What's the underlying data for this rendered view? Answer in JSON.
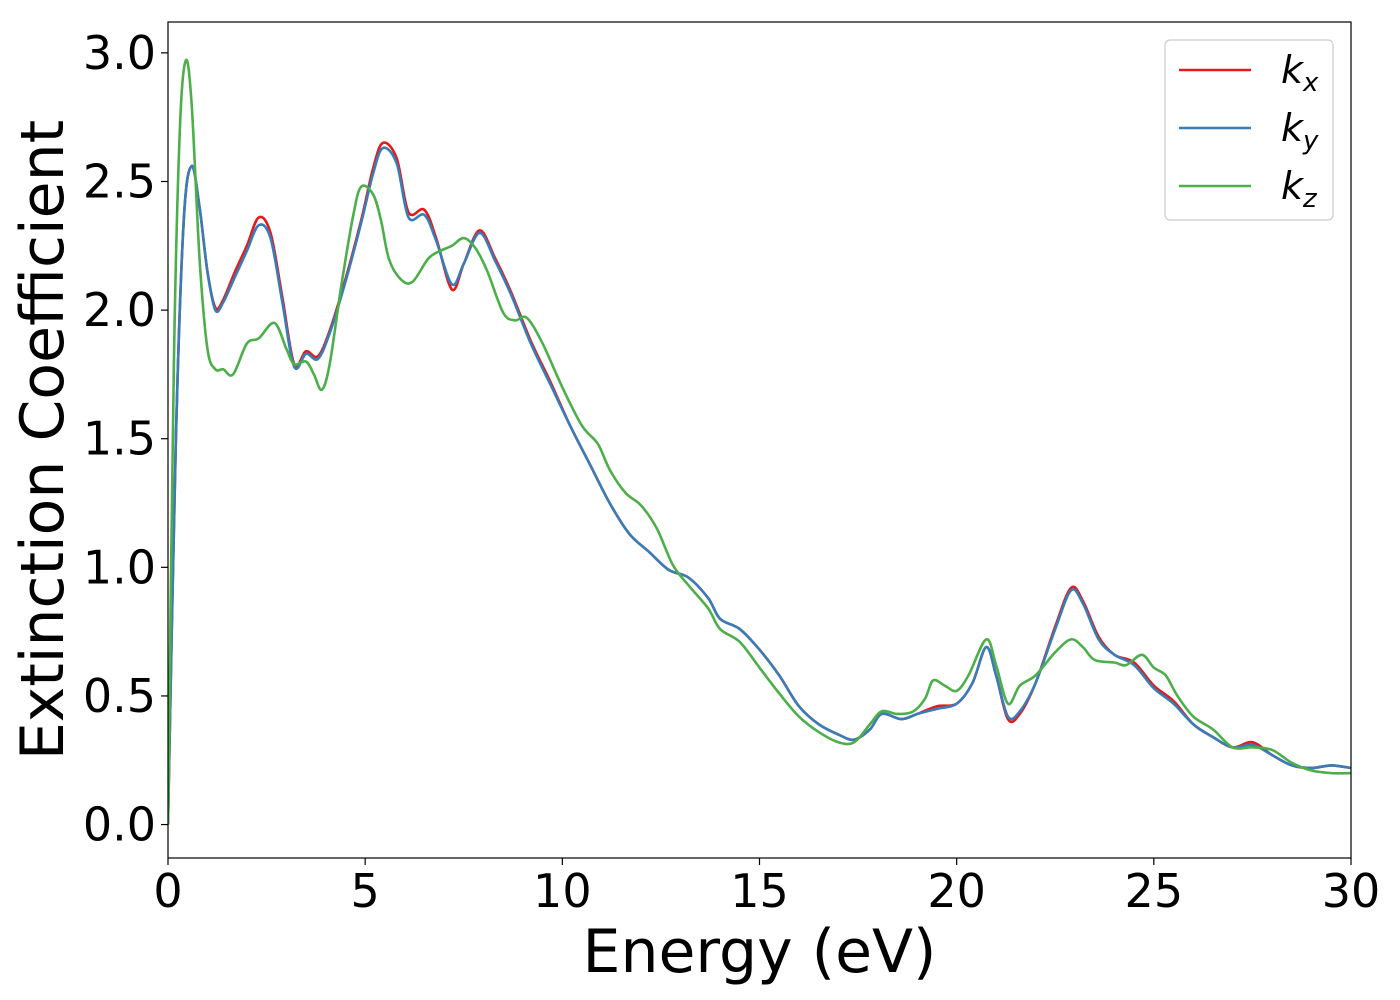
{
  "chart_data": {
    "type": "line",
    "xlabel": "Energy (eV)",
    "ylabel": "Extinction Coefficient",
    "xlim": [
      0,
      30
    ],
    "ylim": [
      -0.13,
      3.12
    ],
    "xticks": [
      0,
      5,
      10,
      15,
      20,
      25,
      30
    ],
    "xtick_labels": [
      "0",
      "5",
      "10",
      "15",
      "20",
      "25",
      "30"
    ],
    "yticks": [
      0.0,
      0.5,
      1.0,
      1.5,
      2.0,
      2.5,
      3.0
    ],
    "ytick_labels": [
      "0.0",
      "0.5",
      "1.0",
      "1.5",
      "2.0",
      "2.5",
      "3.0"
    ],
    "grid": false,
    "legend_position": "top-right",
    "series": [
      {
        "name_main": "k",
        "name_sub": "x",
        "color": "#e41a1c",
        "points": [
          [
            0,
            0
          ],
          [
            0.2,
            1.5
          ],
          [
            0.4,
            2.35
          ],
          [
            0.6,
            2.56
          ],
          [
            0.8,
            2.4
          ],
          [
            1.0,
            2.15
          ],
          [
            1.2,
            2.01
          ],
          [
            1.4,
            2.04
          ],
          [
            1.7,
            2.15
          ],
          [
            2.0,
            2.25
          ],
          [
            2.3,
            2.36
          ],
          [
            2.6,
            2.3
          ],
          [
            2.9,
            2.05
          ],
          [
            3.2,
            1.79
          ],
          [
            3.5,
            1.84
          ],
          [
            3.8,
            1.82
          ],
          [
            4.1,
            1.92
          ],
          [
            4.5,
            2.12
          ],
          [
            4.9,
            2.35
          ],
          [
            5.2,
            2.55
          ],
          [
            5.45,
            2.65
          ],
          [
            5.8,
            2.59
          ],
          [
            6.1,
            2.38
          ],
          [
            6.5,
            2.39
          ],
          [
            6.8,
            2.28
          ],
          [
            7.2,
            2.08
          ],
          [
            7.5,
            2.18
          ],
          [
            7.9,
            2.31
          ],
          [
            8.3,
            2.2
          ],
          [
            8.7,
            2.07
          ],
          [
            9.2,
            1.88
          ],
          [
            9.7,
            1.72
          ],
          [
            10.2,
            1.55
          ],
          [
            10.7,
            1.4
          ],
          [
            11.2,
            1.25
          ],
          [
            11.7,
            1.13
          ],
          [
            12.2,
            1.06
          ],
          [
            12.7,
            0.99
          ],
          [
            13.2,
            0.96
          ],
          [
            13.7,
            0.88
          ],
          [
            14.0,
            0.8
          ],
          [
            14.5,
            0.76
          ],
          [
            15.0,
            0.68
          ],
          [
            15.5,
            0.58
          ],
          [
            16.0,
            0.46
          ],
          [
            16.5,
            0.39
          ],
          [
            17.0,
            0.35
          ],
          [
            17.4,
            0.33
          ],
          [
            17.8,
            0.37
          ],
          [
            18.1,
            0.43
          ],
          [
            18.6,
            0.41
          ],
          [
            19.0,
            0.43
          ],
          [
            19.5,
            0.46
          ],
          [
            20.0,
            0.47
          ],
          [
            20.4,
            0.55
          ],
          [
            20.75,
            0.69
          ],
          [
            21.0,
            0.58
          ],
          [
            21.3,
            0.41
          ],
          [
            21.6,
            0.43
          ],
          [
            22.0,
            0.55
          ],
          [
            22.5,
            0.77
          ],
          [
            22.9,
            0.92
          ],
          [
            23.2,
            0.87
          ],
          [
            23.6,
            0.73
          ],
          [
            24.0,
            0.66
          ],
          [
            24.5,
            0.63
          ],
          [
            25.0,
            0.54
          ],
          [
            25.5,
            0.48
          ],
          [
            26.0,
            0.39
          ],
          [
            26.5,
            0.34
          ],
          [
            27.0,
            0.3
          ],
          [
            27.5,
            0.32
          ],
          [
            28.0,
            0.27
          ],
          [
            28.5,
            0.23
          ],
          [
            29.0,
            0.22
          ],
          [
            29.5,
            0.23
          ],
          [
            30.0,
            0.22
          ]
        ]
      },
      {
        "name_main": "k",
        "name_sub": "y",
        "color": "#377eb8",
        "points": [
          [
            0,
            0
          ],
          [
            0.2,
            1.5
          ],
          [
            0.4,
            2.35
          ],
          [
            0.6,
            2.56
          ],
          [
            0.8,
            2.4
          ],
          [
            1.0,
            2.15
          ],
          [
            1.2,
            2.0
          ],
          [
            1.4,
            2.03
          ],
          [
            1.7,
            2.13
          ],
          [
            2.0,
            2.23
          ],
          [
            2.3,
            2.33
          ],
          [
            2.6,
            2.28
          ],
          [
            2.9,
            2.03
          ],
          [
            3.2,
            1.78
          ],
          [
            3.5,
            1.83
          ],
          [
            3.8,
            1.81
          ],
          [
            4.1,
            1.91
          ],
          [
            4.5,
            2.11
          ],
          [
            4.9,
            2.34
          ],
          [
            5.2,
            2.53
          ],
          [
            5.45,
            2.63
          ],
          [
            5.8,
            2.57
          ],
          [
            6.1,
            2.36
          ],
          [
            6.5,
            2.37
          ],
          [
            6.8,
            2.27
          ],
          [
            7.2,
            2.1
          ],
          [
            7.5,
            2.18
          ],
          [
            7.9,
            2.3
          ],
          [
            8.3,
            2.19
          ],
          [
            8.7,
            2.06
          ],
          [
            9.2,
            1.87
          ],
          [
            9.7,
            1.71
          ],
          [
            10.2,
            1.55
          ],
          [
            10.7,
            1.4
          ],
          [
            11.2,
            1.25
          ],
          [
            11.7,
            1.13
          ],
          [
            12.2,
            1.06
          ],
          [
            12.7,
            0.99
          ],
          [
            13.2,
            0.96
          ],
          [
            13.7,
            0.88
          ],
          [
            14.0,
            0.8
          ],
          [
            14.5,
            0.76
          ],
          [
            15.0,
            0.68
          ],
          [
            15.5,
            0.58
          ],
          [
            16.0,
            0.46
          ],
          [
            16.5,
            0.39
          ],
          [
            17.0,
            0.35
          ],
          [
            17.4,
            0.33
          ],
          [
            17.8,
            0.37
          ],
          [
            18.1,
            0.43
          ],
          [
            18.6,
            0.41
          ],
          [
            19.0,
            0.43
          ],
          [
            19.5,
            0.45
          ],
          [
            20.0,
            0.47
          ],
          [
            20.4,
            0.55
          ],
          [
            20.75,
            0.69
          ],
          [
            21.0,
            0.58
          ],
          [
            21.3,
            0.42
          ],
          [
            21.6,
            0.44
          ],
          [
            22.0,
            0.55
          ],
          [
            22.5,
            0.76
          ],
          [
            22.9,
            0.91
          ],
          [
            23.2,
            0.86
          ],
          [
            23.6,
            0.72
          ],
          [
            24.0,
            0.66
          ],
          [
            24.5,
            0.62
          ],
          [
            25.0,
            0.53
          ],
          [
            25.5,
            0.47
          ],
          [
            26.0,
            0.39
          ],
          [
            26.5,
            0.34
          ],
          [
            27.0,
            0.3
          ],
          [
            27.5,
            0.31
          ],
          [
            28.0,
            0.27
          ],
          [
            28.5,
            0.23
          ],
          [
            29.0,
            0.22
          ],
          [
            29.5,
            0.23
          ],
          [
            30.0,
            0.22
          ]
        ]
      },
      {
        "name_main": "k",
        "name_sub": "z",
        "color": "#4daf4a",
        "points": [
          [
            0,
            0
          ],
          [
            0.15,
            1.8
          ],
          [
            0.3,
            2.7
          ],
          [
            0.45,
            2.97
          ],
          [
            0.6,
            2.8
          ],
          [
            0.8,
            2.2
          ],
          [
            1.0,
            1.85
          ],
          [
            1.2,
            1.77
          ],
          [
            1.4,
            1.77
          ],
          [
            1.65,
            1.75
          ],
          [
            2.0,
            1.87
          ],
          [
            2.3,
            1.89
          ],
          [
            2.7,
            1.95
          ],
          [
            3.0,
            1.85
          ],
          [
            3.2,
            1.79
          ],
          [
            3.5,
            1.8
          ],
          [
            3.7,
            1.75
          ],
          [
            3.9,
            1.69
          ],
          [
            4.1,
            1.79
          ],
          [
            4.4,
            2.1
          ],
          [
            4.7,
            2.37
          ],
          [
            4.9,
            2.48
          ],
          [
            5.2,
            2.45
          ],
          [
            5.4,
            2.35
          ],
          [
            5.6,
            2.2
          ],
          [
            5.9,
            2.12
          ],
          [
            6.2,
            2.11
          ],
          [
            6.6,
            2.2
          ],
          [
            6.9,
            2.23
          ],
          [
            7.2,
            2.25
          ],
          [
            7.5,
            2.28
          ],
          [
            7.8,
            2.24
          ],
          [
            8.1,
            2.15
          ],
          [
            8.5,
            1.99
          ],
          [
            8.8,
            1.96
          ],
          [
            9.1,
            1.97
          ],
          [
            9.5,
            1.87
          ],
          [
            10.0,
            1.7
          ],
          [
            10.5,
            1.55
          ],
          [
            10.9,
            1.48
          ],
          [
            11.2,
            1.38
          ],
          [
            11.6,
            1.29
          ],
          [
            12.0,
            1.24
          ],
          [
            12.4,
            1.15
          ],
          [
            12.8,
            1.01
          ],
          [
            13.2,
            0.93
          ],
          [
            13.7,
            0.84
          ],
          [
            14.0,
            0.76
          ],
          [
            14.5,
            0.71
          ],
          [
            15.0,
            0.61
          ],
          [
            15.5,
            0.51
          ],
          [
            16.0,
            0.42
          ],
          [
            16.5,
            0.36
          ],
          [
            17.0,
            0.32
          ],
          [
            17.4,
            0.32
          ],
          [
            17.8,
            0.39
          ],
          [
            18.1,
            0.44
          ],
          [
            18.5,
            0.43
          ],
          [
            18.9,
            0.44
          ],
          [
            19.2,
            0.49
          ],
          [
            19.4,
            0.56
          ],
          [
            19.7,
            0.54
          ],
          [
            20.0,
            0.52
          ],
          [
            20.3,
            0.58
          ],
          [
            20.75,
            0.72
          ],
          [
            21.0,
            0.62
          ],
          [
            21.3,
            0.47
          ],
          [
            21.6,
            0.54
          ],
          [
            22.0,
            0.58
          ],
          [
            22.5,
            0.67
          ],
          [
            22.9,
            0.72
          ],
          [
            23.2,
            0.69
          ],
          [
            23.5,
            0.64
          ],
          [
            24.0,
            0.63
          ],
          [
            24.3,
            0.62
          ],
          [
            24.7,
            0.66
          ],
          [
            25.0,
            0.61
          ],
          [
            25.3,
            0.58
          ],
          [
            25.6,
            0.5
          ],
          [
            26.0,
            0.42
          ],
          [
            26.5,
            0.37
          ],
          [
            27.0,
            0.3
          ],
          [
            27.5,
            0.3
          ],
          [
            28.0,
            0.29
          ],
          [
            28.5,
            0.24
          ],
          [
            29.0,
            0.21
          ],
          [
            29.5,
            0.2
          ],
          [
            30.0,
            0.2
          ]
        ]
      }
    ]
  }
}
